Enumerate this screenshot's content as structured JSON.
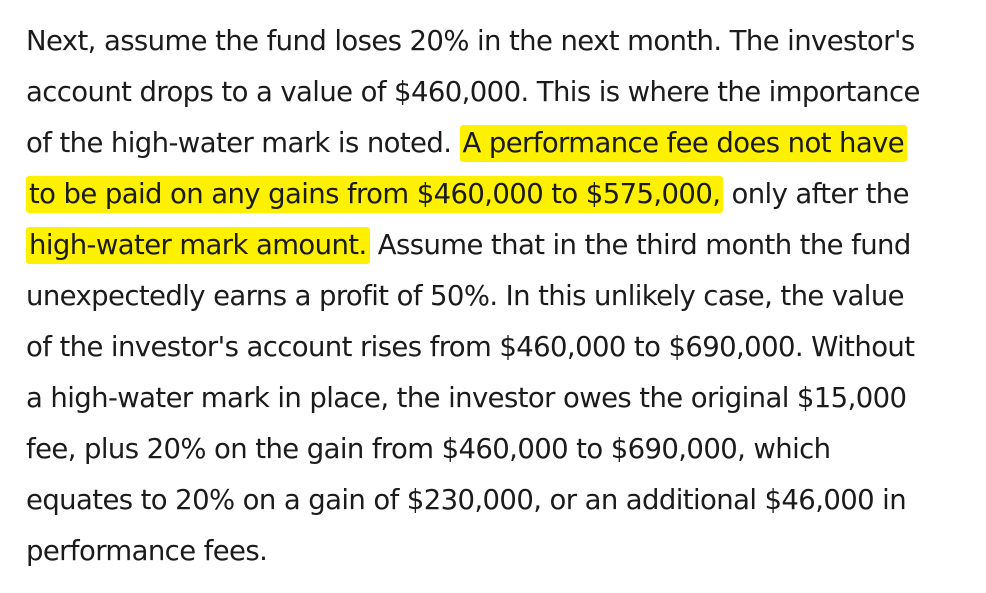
{
  "article": {
    "lines": [
      {
        "segments": [
          {
            "text": "Next, assume the fund loses 20% in the next month. The investor's",
            "highlight": false
          }
        ]
      },
      {
        "segments": [
          {
            "text": "account drops to a value of $460,000. This is where the importance",
            "highlight": false
          }
        ]
      },
      {
        "segments": [
          {
            "text": "of the high-water mark is noted. ",
            "highlight": false
          },
          {
            "text": "A performance fee does not have",
            "highlight": true
          }
        ]
      },
      {
        "segments": [
          {
            "text": "to be paid on any gains from $460,000 to $575,000,",
            "highlight": true
          },
          {
            "text": " only after the",
            "highlight": false
          }
        ]
      },
      {
        "segments": [
          {
            "text": "high-water mark amount.",
            "highlight": true
          },
          {
            "text": " Assume that in the third month the fund",
            "highlight": false
          }
        ]
      },
      {
        "segments": [
          {
            "text": "unexpectedly earns a profit of 50%. In this unlikely case, the value",
            "highlight": false
          }
        ]
      },
      {
        "segments": [
          {
            "text": "of the investor's account rises from $460,000 to $690,000. Without",
            "highlight": false
          }
        ]
      },
      {
        "segments": [
          {
            "text": "a high-water mark in place, the investor owes the original $15,000",
            "highlight": false
          }
        ]
      },
      {
        "segments": [
          {
            "text": "fee, plus 20% on the gain from $460,000 to $690,000, which",
            "highlight": false
          }
        ]
      },
      {
        "segments": [
          {
            "text": "equates to 20% on a gain of $230,000, or an additional $46,000 in",
            "highlight": false
          }
        ]
      },
      {
        "segments": [
          {
            "text": "performance fees.",
            "highlight": false
          }
        ]
      }
    ],
    "highlight_color": "#fdf000",
    "text_color": "#1b1b1b"
  }
}
